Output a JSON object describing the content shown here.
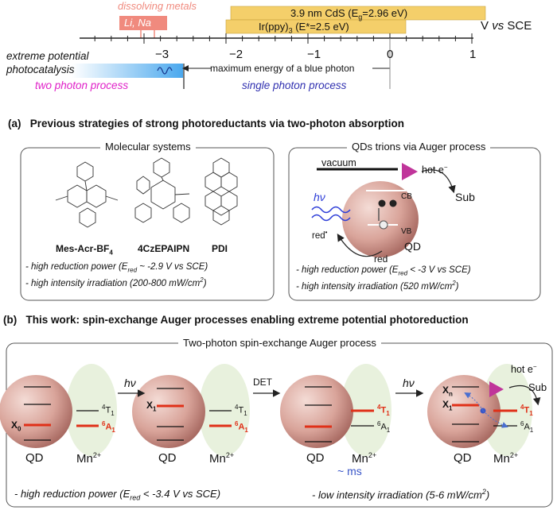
{
  "scale": {
    "dissolving_metals": "dissolving metals",
    "li_na": "Li, Na",
    "cds_band": "3.9 nm CdS (E",
    "cds_band_sub": "g",
    "cds_band_end": "=2.96 eV)",
    "ir_band": "Ir(ppy)",
    "ir_band_sub": "3",
    "ir_band_end": " (E*=2.5 eV)",
    "axis_label": "V vs SCE",
    "axis_label_v": "V ",
    "axis_label_vs": "vs",
    "axis_label_sce": " SCE",
    "ticks": [
      "−3",
      "−2",
      "−1",
      "0",
      "1"
    ],
    "extreme_1": "extreme potential",
    "extreme_2": "photocatalysis",
    "blue_photon": "maximum energy of a blue photon",
    "two_photon": "two photon process",
    "single_photon": "single photon process",
    "colors": {
      "metal": "#f08a7e",
      "band": "#f4cf6a",
      "two": "#e020c8",
      "single": "#3030b0",
      "blue": "#3a8de0"
    }
  },
  "section_a": {
    "label": "(a)",
    "title": "Previous strategies of strong photoreductants via two-photon absorption",
    "molecular": {
      "title": "Molecular systems",
      "mol1": "Mes-Acr-BF",
      "mol1_sub": "4",
      "mol2": "4CzEPAIPN",
      "mol3": "PDI",
      "note1_a": "- high reduction power (E",
      "note1_sub": "red",
      "note1_b": " ~ -2.9 V vs SCE)",
      "note2": "- high intensity irradiation (200-800 mW/cm",
      "note2_sup": "2",
      "note2_end": ")"
    },
    "qds": {
      "title": "QDs trions via Auger process",
      "vacuum": "vacuum",
      "hot_e": "hot e",
      "hot_e_sup": "−",
      "sub": "Sub",
      "hv": "hν",
      "cb": "CB",
      "vb": "VB",
      "qd": "QD",
      "red_star": "red",
      "red_star_sup": "•",
      "red": "red",
      "note1_a": "- high reduction power (E",
      "note1_sub": "red",
      "note1_b": " < -3 V vs SCE)",
      "note2": "- high intensity irradiation (520 mW/cm",
      "note2_sup": "2",
      "note2_end": ")"
    }
  },
  "section_b": {
    "label": "(b)",
    "title": "This work: spin-exchange Auger processes enabling extreme potential photoreduction",
    "box_title": "Two-photon spin-exchange Auger process",
    "x0": "X",
    "x0_sub": "0",
    "x1": "X",
    "x1_sub": "1",
    "xn": "X",
    "xn_sub": "n",
    "t1": "T",
    "t1_pre": "4",
    "t1_sub": "1",
    "a1": "A",
    "a1_pre": "6",
    "a1_sub": "1",
    "qd": "QD",
    "mn": "Mn",
    "mn_sup": "2+",
    "hv": "hν",
    "det": "DET",
    "ms": "~ ms",
    "hot_e": "hot e",
    "hot_e_sup": "−",
    "sub": "Sub",
    "note1_a": "- high reduction power (E",
    "note1_sub": "red",
    "note1_b": " < -3.4 V vs SCE)",
    "note2": "- low intensity irradiation (5-6 mW/cm",
    "note2_sup": "2",
    "note2_end": ")"
  }
}
